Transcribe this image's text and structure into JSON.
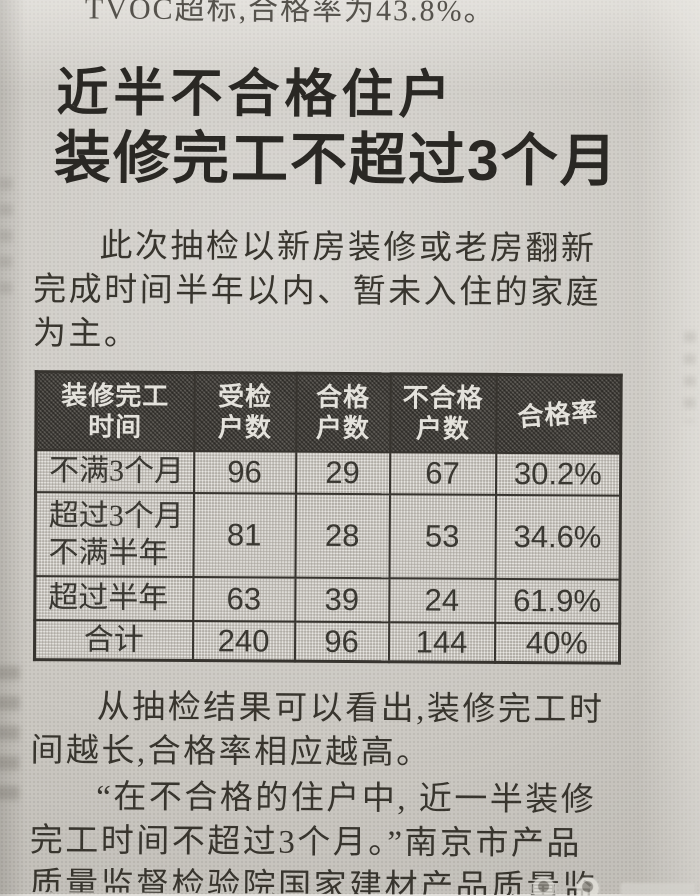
{
  "article": {
    "top_cropped_line": "TVOC超标,合格率为43.8%。",
    "headline": {
      "line1": "近半不合格住户",
      "line2": "装修完工不超过3个月"
    },
    "paragraphs": {
      "intro": {
        "lines": [
          "此次抽检以新房装修或老房翻新",
          "完成时间半年以内、暂未入住的家庭",
          "为主。"
        ]
      },
      "result": {
        "lines": [
          "从抽检结果可以看出,装修完工时",
          "间越长,合格率相应越高。"
        ]
      },
      "quote": {
        "lines": [
          "“在不合格的住户中, 近一半装修",
          "完工时间不超过3个月。”南京市产品",
          "质量监督检验院国家建材产品质量监"
        ]
      }
    },
    "table": {
      "headers": [
        "装修完工\n时间",
        "受检\n户数",
        "合格\n户数",
        "不合格\n户数",
        "合格率"
      ],
      "rows": [
        {
          "cells": [
            "不满3个月",
            "96",
            "29",
            "67",
            "30.2%"
          ]
        },
        {
          "cells": [
            "超过3个月\n不满半年",
            "81",
            "28",
            "53",
            "34.6%"
          ]
        },
        {
          "cells": [
            "超过半年",
            "63",
            "39",
            "24",
            "61.9%"
          ]
        },
        {
          "cells": [
            "合计",
            "240",
            "96",
            "144",
            "40%"
          ]
        }
      ]
    },
    "colors": {
      "paper": "#ccc9c3",
      "ink": "#38352e",
      "headline_ink": "#2a2824",
      "table_header_bg": "#47443f",
      "table_header_text": "#e4e2dc",
      "table_border": "#37342f",
      "cell_bg": "#d4d1cb"
    }
  }
}
